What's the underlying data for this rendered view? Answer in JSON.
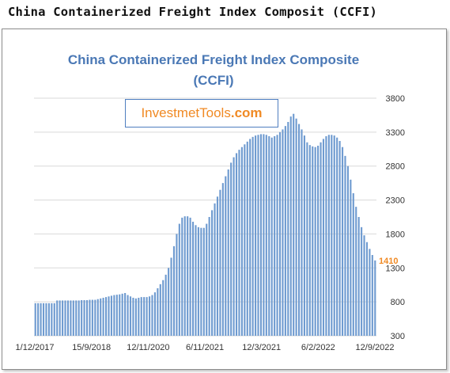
{
  "page_title": "China Containerized Freight Index Composit (CCFI)",
  "watermark": {
    "brand": "InvestmetTools",
    "tld": ".com"
  },
  "colors": {
    "bars": "#6f9bd0",
    "title": "#4a78b5",
    "accent": "#f08a24",
    "grid": "#d9d9d9"
  },
  "chart_data": {
    "type": "bar",
    "title_line1": "China Containerized Freight Index Composite",
    "title_line2": "(CCFI)",
    "x_tick_labels": [
      "1/12/2017",
      "15/9/2018",
      "12/11/2020",
      "6/11/2021",
      "12/3/2021",
      "6/2/2022",
      "12/9/2022"
    ],
    "y_ticks": [
      300,
      800,
      1300,
      1800,
      2300,
      2800,
      3300,
      3800
    ],
    "ylim": [
      300,
      3800
    ],
    "grid": "horizontal",
    "last_value_label": "1410",
    "values": [
      780,
      780,
      780,
      780,
      780,
      780,
      780,
      780,
      820,
      820,
      820,
      820,
      820,
      820,
      820,
      820,
      820,
      825,
      825,
      825,
      830,
      830,
      830,
      840,
      850,
      860,
      870,
      880,
      890,
      900,
      905,
      910,
      920,
      930,
      900,
      880,
      860,
      850,
      860,
      870,
      870,
      870,
      880,
      900,
      940,
      1000,
      1060,
      1120,
      1200,
      1300,
      1450,
      1620,
      1800,
      1950,
      2040,
      2060,
      2060,
      2040,
      1980,
      1930,
      1900,
      1890,
      1890,
      1950,
      2050,
      2150,
      2250,
      2350,
      2450,
      2550,
      2650,
      2750,
      2850,
      2930,
      2990,
      3040,
      3080,
      3120,
      3160,
      3200,
      3230,
      3250,
      3260,
      3270,
      3270,
      3260,
      3240,
      3220,
      3240,
      3260,
      3300,
      3340,
      3390,
      3450,
      3530,
      3570,
      3500,
      3420,
      3340,
      3250,
      3150,
      3110,
      3090,
      3080,
      3100,
      3150,
      3200,
      3240,
      3260,
      3260,
      3250,
      3220,
      3170,
      3080,
      2950,
      2800,
      2600,
      2400,
      2200,
      2050,
      1900,
      1780,
      1680,
      1580,
      1490,
      1410
    ]
  }
}
